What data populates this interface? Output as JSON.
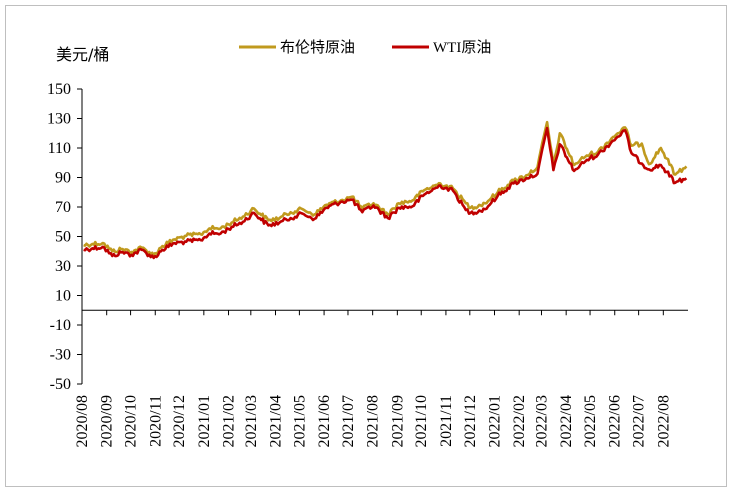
{
  "chart_data": {
    "type": "line",
    "title": "",
    "ylabel": "美元/桶",
    "xlabel": "",
    "ylim": [
      -50,
      150
    ],
    "yticks": [
      150,
      130,
      110,
      90,
      70,
      50,
      30,
      10,
      -10,
      -30,
      -50
    ],
    "grid": false,
    "legend_position": "top",
    "x_dates": [
      "2020-08",
      "2020-09",
      "2020-10",
      "2020-11",
      "2020-12",
      "2021-01",
      "2021-02",
      "2021-03",
      "2021-04",
      "2021-05",
      "2021-06",
      "2021-07",
      "2021-08",
      "2021-09",
      "2021-10",
      "2021-11",
      "2021-12",
      "2022-01",
      "2022-02",
      "2022-03",
      "2022-04",
      "2022-05",
      "2022-06",
      "2022-07",
      "2022-08"
    ],
    "x_tick_labels": [
      "2020/08",
      "2020/09",
      "2020/10",
      "2020/11",
      "2020/12",
      "2021/01",
      "2021/02",
      "2021/03",
      "2021/04",
      "2021/05",
      "2021/06",
      "2021/07",
      "2021/08",
      "2021/09",
      "2021/10",
      "2021/11",
      "2021/12",
      "2022/01",
      "2022/02",
      "2022/03",
      "2022/04",
      "2022/05",
      "2022/06",
      "2022/07",
      "2022/08"
    ],
    "series": [
      {
        "name": "布伦特原油",
        "color": "#c09a1e",
        "points": [
          [
            "2020-08-03",
            44.2
          ],
          [
            "2020-08-14",
            45.0
          ],
          [
            "2020-08-27",
            45.6
          ],
          [
            "2020-09-08",
            40.0
          ],
          [
            "2020-09-21",
            41.5
          ],
          [
            "2020-10-02",
            39.5
          ],
          [
            "2020-10-15",
            42.5
          ],
          [
            "2020-10-30",
            37.5
          ],
          [
            "2020-11-10",
            43.5
          ],
          [
            "2020-11-25",
            48.0
          ],
          [
            "2020-12-10",
            50.5
          ],
          [
            "2020-12-28",
            51.5
          ],
          [
            "2021-01-08",
            55.5
          ],
          [
            "2021-01-22",
            55.5
          ],
          [
            "2021-02-05",
            59.5
          ],
          [
            "2021-02-19",
            63.5
          ],
          [
            "2021-03-05",
            69.0
          ],
          [
            "2021-03-23",
            61.0
          ],
          [
            "2021-04-06",
            62.5
          ],
          [
            "2021-04-20",
            66.5
          ],
          [
            "2021-05-05",
            68.5
          ],
          [
            "2021-05-20",
            65.0
          ],
          [
            "2021-06-04",
            71.5
          ],
          [
            "2021-06-22",
            74.5
          ],
          [
            "2021-07-06",
            77.0
          ],
          [
            "2021-07-19",
            69.0
          ],
          [
            "2021-08-02",
            72.5
          ],
          [
            "2021-08-20",
            65.0
          ],
          [
            "2021-09-03",
            72.5
          ],
          [
            "2021-09-20",
            74.5
          ],
          [
            "2021-10-05",
            81.5
          ],
          [
            "2021-10-25",
            86.0
          ],
          [
            "2021-11-10",
            82.5
          ],
          [
            "2021-11-26",
            72.5
          ],
          [
            "2021-12-02",
            69.5
          ],
          [
            "2021-12-20",
            72.5
          ],
          [
            "2022-01-05",
            80.0
          ],
          [
            "2022-01-25",
            88.0
          ],
          [
            "2022-02-10",
            91.5
          ],
          [
            "2022-02-24",
            97.0
          ],
          [
            "2022-03-08",
            127.5
          ],
          [
            "2022-03-16",
            98.0
          ],
          [
            "2022-03-24",
            120.0
          ],
          [
            "2022-04-11",
            98.5
          ],
          [
            "2022-04-27",
            105.0
          ],
          [
            "2022-05-11",
            107.5
          ],
          [
            "2022-05-30",
            117.5
          ],
          [
            "2022-06-14",
            124.0
          ],
          [
            "2022-06-22",
            111.5
          ],
          [
            "2022-07-05",
            113.0
          ],
          [
            "2022-07-14",
            99.0
          ],
          [
            "2022-07-29",
            110.0
          ],
          [
            "2022-08-16",
            92.0
          ],
          [
            "2022-08-30",
            97.5
          ]
        ]
      },
      {
        "name": "WTI原油",
        "color": "#c00000",
        "points": [
          [
            "2020-08-03",
            41.0
          ],
          [
            "2020-08-14",
            42.0
          ],
          [
            "2020-08-27",
            43.0
          ],
          [
            "2020-09-08",
            36.8
          ],
          [
            "2020-09-21",
            39.5
          ],
          [
            "2020-10-02",
            37.5
          ],
          [
            "2020-10-15",
            41.0
          ],
          [
            "2020-10-30",
            35.5
          ],
          [
            "2020-11-10",
            41.0
          ],
          [
            "2020-11-25",
            45.5
          ],
          [
            "2020-12-10",
            46.5
          ],
          [
            "2020-12-28",
            47.5
          ],
          [
            "2021-01-08",
            52.0
          ],
          [
            "2021-01-22",
            52.0
          ],
          [
            "2021-02-05",
            56.5
          ],
          [
            "2021-02-19",
            60.0
          ],
          [
            "2021-03-05",
            66.0
          ],
          [
            "2021-03-23",
            57.5
          ],
          [
            "2021-04-06",
            59.5
          ],
          [
            "2021-04-20",
            62.5
          ],
          [
            "2021-05-05",
            65.5
          ],
          [
            "2021-05-20",
            62.0
          ],
          [
            "2021-06-04",
            69.5
          ],
          [
            "2021-06-22",
            73.5
          ],
          [
            "2021-07-06",
            75.0
          ],
          [
            "2021-07-19",
            66.5
          ],
          [
            "2021-08-02",
            71.0
          ],
          [
            "2021-08-20",
            62.5
          ],
          [
            "2021-09-03",
            69.5
          ],
          [
            "2021-09-20",
            70.5
          ],
          [
            "2021-10-05",
            78.5
          ],
          [
            "2021-10-25",
            84.5
          ],
          [
            "2021-11-10",
            81.0
          ],
          [
            "2021-11-26",
            68.0
          ],
          [
            "2021-12-02",
            66.0
          ],
          [
            "2021-12-20",
            68.5
          ],
          [
            "2022-01-05",
            77.5
          ],
          [
            "2022-01-25",
            86.0
          ],
          [
            "2022-02-10",
            89.5
          ],
          [
            "2022-02-24",
            92.5
          ],
          [
            "2022-03-08",
            123.5
          ],
          [
            "2022-03-16",
            95.0
          ],
          [
            "2022-03-24",
            112.5
          ],
          [
            "2022-04-11",
            94.5
          ],
          [
            "2022-04-27",
            102.0
          ],
          [
            "2022-05-11",
            105.5
          ],
          [
            "2022-05-30",
            115.0
          ],
          [
            "2022-06-14",
            122.0
          ],
          [
            "2022-06-22",
            106.5
          ],
          [
            "2022-07-05",
            99.5
          ],
          [
            "2022-07-14",
            95.5
          ],
          [
            "2022-07-29",
            98.5
          ],
          [
            "2022-08-16",
            86.5
          ],
          [
            "2022-08-30",
            89.5
          ]
        ]
      }
    ]
  }
}
